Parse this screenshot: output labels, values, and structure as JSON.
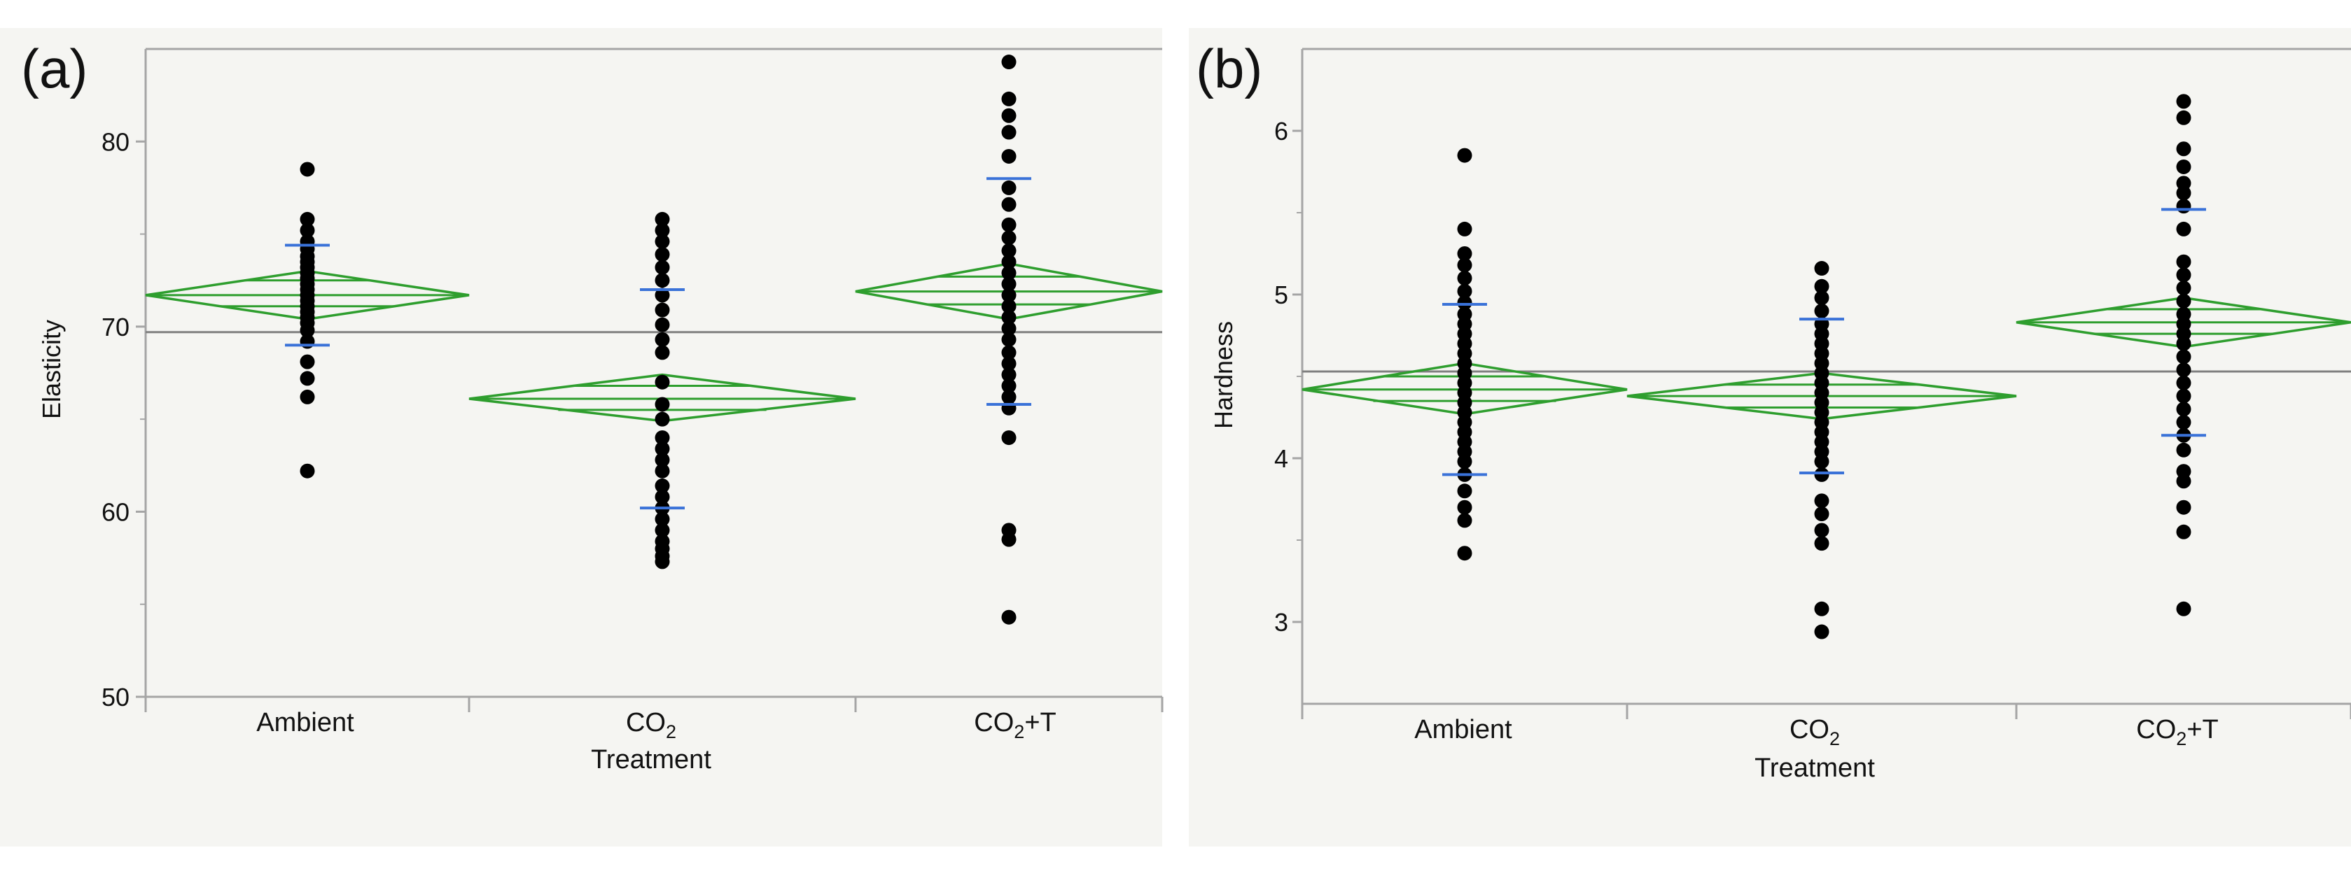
{
  "colors": {
    "panel_bg": "#f5f5f2",
    "frame": "#a5a5a5",
    "grand_mean_line": "#808080",
    "diamond": "#2e9e2e",
    "sd_marker": "#3a72d8",
    "point": "#000000",
    "text": "#111111"
  },
  "chart_data": [
    {
      "type": "scatter",
      "subtype": "one-way means diamonds",
      "panel_label": "(a)",
      "xlabel": "Treatment",
      "ylabel": "Elasticity",
      "categories": [
        {
          "label": "Ambient",
          "sub": ""
        },
        {
          "label": "CO",
          "sub": "2"
        },
        {
          "label": "CO",
          "sub": "2",
          "suffix": "+T"
        }
      ],
      "ylim": [
        50,
        85
      ],
      "yticks": [
        50,
        60,
        70,
        80
      ],
      "grand_mean": 69.7,
      "groups": [
        {
          "name": "Ambient",
          "mean": 71.7,
          "ci": [
            70.4,
            73.0
          ],
          "overlap": [
            71.1,
            72.5
          ],
          "sd_marks": [
            69.0,
            74.4
          ],
          "points": [
            78.5,
            75.8,
            75.2,
            74.6,
            74.2,
            73.8,
            73.5,
            73.2,
            72.9,
            72.6,
            72.3,
            72.0,
            71.7,
            71.4,
            71.1,
            70.8,
            70.5,
            70.2,
            69.8,
            69.2,
            68.1,
            67.2,
            66.2,
            62.2
          ]
        },
        {
          "name": "CO2",
          "mean": 66.1,
          "ci": [
            64.9,
            67.4
          ],
          "overlap": [
            65.5,
            66.8
          ],
          "sd_marks": [
            60.2,
            72.0
          ],
          "points": [
            75.8,
            75.2,
            74.6,
            73.9,
            73.2,
            72.5,
            71.7,
            70.9,
            70.1,
            69.3,
            68.6,
            67.0,
            65.8,
            65.0,
            64.0,
            63.4,
            62.8,
            62.2,
            61.4,
            60.8,
            60.2,
            59.6,
            59.0,
            58.4,
            58.0,
            57.6,
            57.3
          ]
        },
        {
          "name": "CO2+T",
          "mean": 71.9,
          "ci": [
            70.4,
            73.4
          ],
          "overlap": [
            71.2,
            72.7
          ],
          "sd_marks": [
            65.8,
            78.0
          ],
          "points": [
            84.3,
            82.3,
            81.4,
            80.5,
            79.2,
            77.5,
            76.6,
            75.5,
            74.8,
            74.1,
            73.5,
            72.9,
            72.3,
            71.7,
            71.1,
            70.5,
            69.9,
            69.3,
            68.6,
            68.0,
            67.4,
            66.8,
            66.2,
            65.6,
            64.0,
            59.0,
            58.5,
            54.3
          ]
        }
      ]
    },
    {
      "type": "scatter",
      "subtype": "one-way means diamonds",
      "panel_label": "(b)",
      "xlabel": "Treatment",
      "ylabel": "Hardness",
      "categories": [
        {
          "label": "Ambient",
          "sub": ""
        },
        {
          "label": "CO",
          "sub": "2"
        },
        {
          "label": "CO",
          "sub": "2",
          "suffix": "+T"
        }
      ],
      "ylim": [
        2.5,
        6.5
      ],
      "yticks": [
        3,
        4,
        5,
        6
      ],
      "grand_mean": 4.53,
      "groups": [
        {
          "name": "Ambient",
          "mean": 4.42,
          "ci": [
            4.27,
            4.58
          ],
          "overlap": [
            4.35,
            4.5
          ],
          "sd_marks": [
            3.9,
            4.94
          ],
          "points": [
            5.85,
            5.4,
            5.25,
            5.18,
            5.1,
            5.02,
            4.95,
            4.88,
            4.82,
            4.76,
            4.7,
            4.64,
            4.58,
            4.52,
            4.46,
            4.4,
            4.34,
            4.28,
            4.22,
            4.16,
            4.1,
            4.04,
            3.98,
            3.9,
            3.8,
            3.7,
            3.62,
            3.42
          ]
        },
        {
          "name": "CO2",
          "mean": 4.38,
          "ci": [
            4.24,
            4.52
          ],
          "overlap": [
            4.31,
            4.45
          ],
          "sd_marks": [
            3.91,
            4.85
          ],
          "points": [
            5.16,
            5.05,
            4.98,
            4.9,
            4.82,
            4.76,
            4.7,
            4.64,
            4.58,
            4.52,
            4.46,
            4.4,
            4.34,
            4.28,
            4.22,
            4.16,
            4.1,
            4.04,
            3.98,
            3.9,
            3.74,
            3.66,
            3.56,
            3.48,
            3.08,
            2.94
          ]
        },
        {
          "name": "CO2+T",
          "mean": 4.83,
          "ci": [
            4.68,
            4.98
          ],
          "overlap": [
            4.76,
            4.91
          ],
          "sd_marks": [
            4.14,
            5.52
          ],
          "points": [
            6.18,
            6.08,
            5.89,
            5.78,
            5.68,
            5.62,
            5.54,
            5.4,
            5.2,
            5.12,
            5.04,
            4.96,
            4.88,
            4.82,
            4.76,
            4.7,
            4.62,
            4.54,
            4.46,
            4.38,
            4.3,
            4.22,
            4.14,
            4.05,
            3.92,
            3.86,
            3.7,
            3.55,
            3.08
          ]
        }
      ]
    }
  ]
}
